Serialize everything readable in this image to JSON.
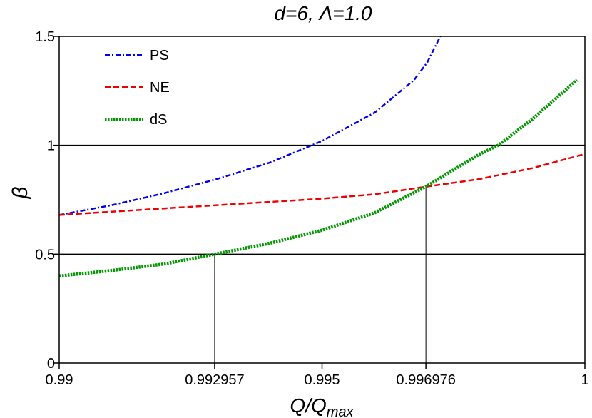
{
  "chart_data": {
    "type": "line",
    "title": "d=6, Λ=1.0",
    "xlabel": "Q/Q",
    "xlabel_sub": "max",
    "ylabel": "β",
    "xlim": [
      0.99,
      1.0
    ],
    "ylim": [
      0,
      1.5
    ],
    "x_ticks": [
      {
        "value": 0.99,
        "label": "0.99"
      },
      {
        "value": 0.992957,
        "label": "0.992957"
      },
      {
        "value": 0.995,
        "label": "0.995"
      },
      {
        "value": 0.996976,
        "label": "0.996976"
      },
      {
        "value": 1.0,
        "label": "1"
      }
    ],
    "y_ticks": [
      {
        "value": 0,
        "label": "0"
      },
      {
        "value": 0.5,
        "label": "0.5"
      },
      {
        "value": 1,
        "label": "1"
      },
      {
        "value": 1.5,
        "label": "1.5"
      }
    ],
    "reference_hlines": [
      0.5,
      1.0
    ],
    "reference_vlines": [
      {
        "x": 0.992957,
        "y": 0.5
      },
      {
        "x": 0.996976,
        "y": 0.81
      }
    ],
    "legend_position": "top-left",
    "series": [
      {
        "name": "PS",
        "color": "#0000ee",
        "style": "dashdot",
        "x": [
          0.99,
          0.991,
          0.992,
          0.993,
          0.994,
          0.995,
          0.996,
          0.99675,
          0.997,
          0.99725
        ],
        "y": [
          0.68,
          0.725,
          0.78,
          0.845,
          0.92,
          1.02,
          1.15,
          1.3,
          1.38,
          1.5
        ]
      },
      {
        "name": "NE",
        "color": "#ee0000",
        "style": "dashed",
        "x": [
          0.99,
          0.991,
          0.992,
          0.993,
          0.994,
          0.995,
          0.996,
          0.99698,
          0.998,
          0.999,
          1.0
        ],
        "y": [
          0.68,
          0.695,
          0.71,
          0.725,
          0.74,
          0.755,
          0.775,
          0.81,
          0.845,
          0.895,
          0.96
        ]
      },
      {
        "name": "dS",
        "color": "#009900",
        "style": "dotted",
        "x": [
          0.99,
          0.991,
          0.992,
          0.992957,
          0.994,
          0.995,
          0.996,
          0.996976,
          0.998,
          0.99835,
          0.999,
          0.99985
        ],
        "y": [
          0.4,
          0.425,
          0.455,
          0.5,
          0.55,
          0.61,
          0.69,
          0.81,
          0.96,
          1.0,
          1.12,
          1.3
        ]
      }
    ]
  }
}
